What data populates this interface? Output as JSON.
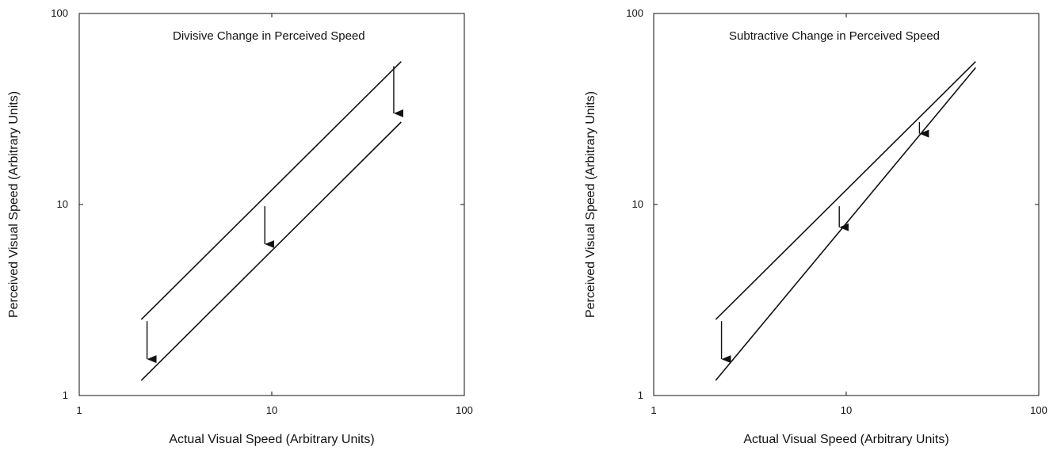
{
  "chart_data": [
    {
      "type": "line",
      "title": "Divisive Change in Perceived Speed",
      "xlabel": "Actual Visual Speed (Arbitrary Units)",
      "ylabel": "Perceived Visual Speed (Arbitrary Units)",
      "xscale": "log",
      "yscale": "log",
      "xlim": [
        1,
        100
      ],
      "ylim": [
        1,
        100
      ],
      "x_ticks": [
        "1",
        "10",
        "100"
      ],
      "y_ticks": [
        "1",
        "10",
        "100"
      ],
      "grid": false,
      "series": [
        {
          "points": [
            [
              2.1,
              2.5
            ],
            [
              47,
              56
            ]
          ]
        },
        {
          "points": [
            [
              2.1,
              1.2
            ],
            [
              47,
              27
            ]
          ]
        }
      ],
      "arrows": [
        {
          "x": 2.25,
          "y_from": 2.45,
          "y_to": 1.55
        },
        {
          "x": 9.2,
          "y_from": 9.8,
          "y_to": 6.2
        },
        {
          "x": 43,
          "y_from": 53,
          "y_to": 30
        }
      ]
    },
    {
      "type": "line",
      "title": "Subtractive Change in Perceived Speed",
      "xlabel": "Actual Visual Speed (Arbitrary Units)",
      "ylabel": "Perceived Visual Speed (Arbitrary Units)",
      "xscale": "log",
      "yscale": "log",
      "xlim": [
        1,
        100
      ],
      "ylim": [
        1,
        100
      ],
      "x_ticks": [
        "1",
        "10",
        "100"
      ],
      "y_ticks": [
        "1",
        "10",
        "100"
      ],
      "grid": false,
      "series": [
        {
          "points": [
            [
              2.1,
              2.5
            ],
            [
              47,
              56
            ]
          ]
        },
        {
          "points": [
            [
              2.1,
              1.2
            ],
            [
              47,
              52
            ]
          ]
        }
      ],
      "arrows": [
        {
          "x": 2.25,
          "y_from": 2.45,
          "y_to": 1.55
        },
        {
          "x": 9.2,
          "y_from": 9.8,
          "y_to": 7.6
        },
        {
          "x": 24,
          "y_from": 27,
          "y_to": 23.5
        }
      ]
    }
  ]
}
